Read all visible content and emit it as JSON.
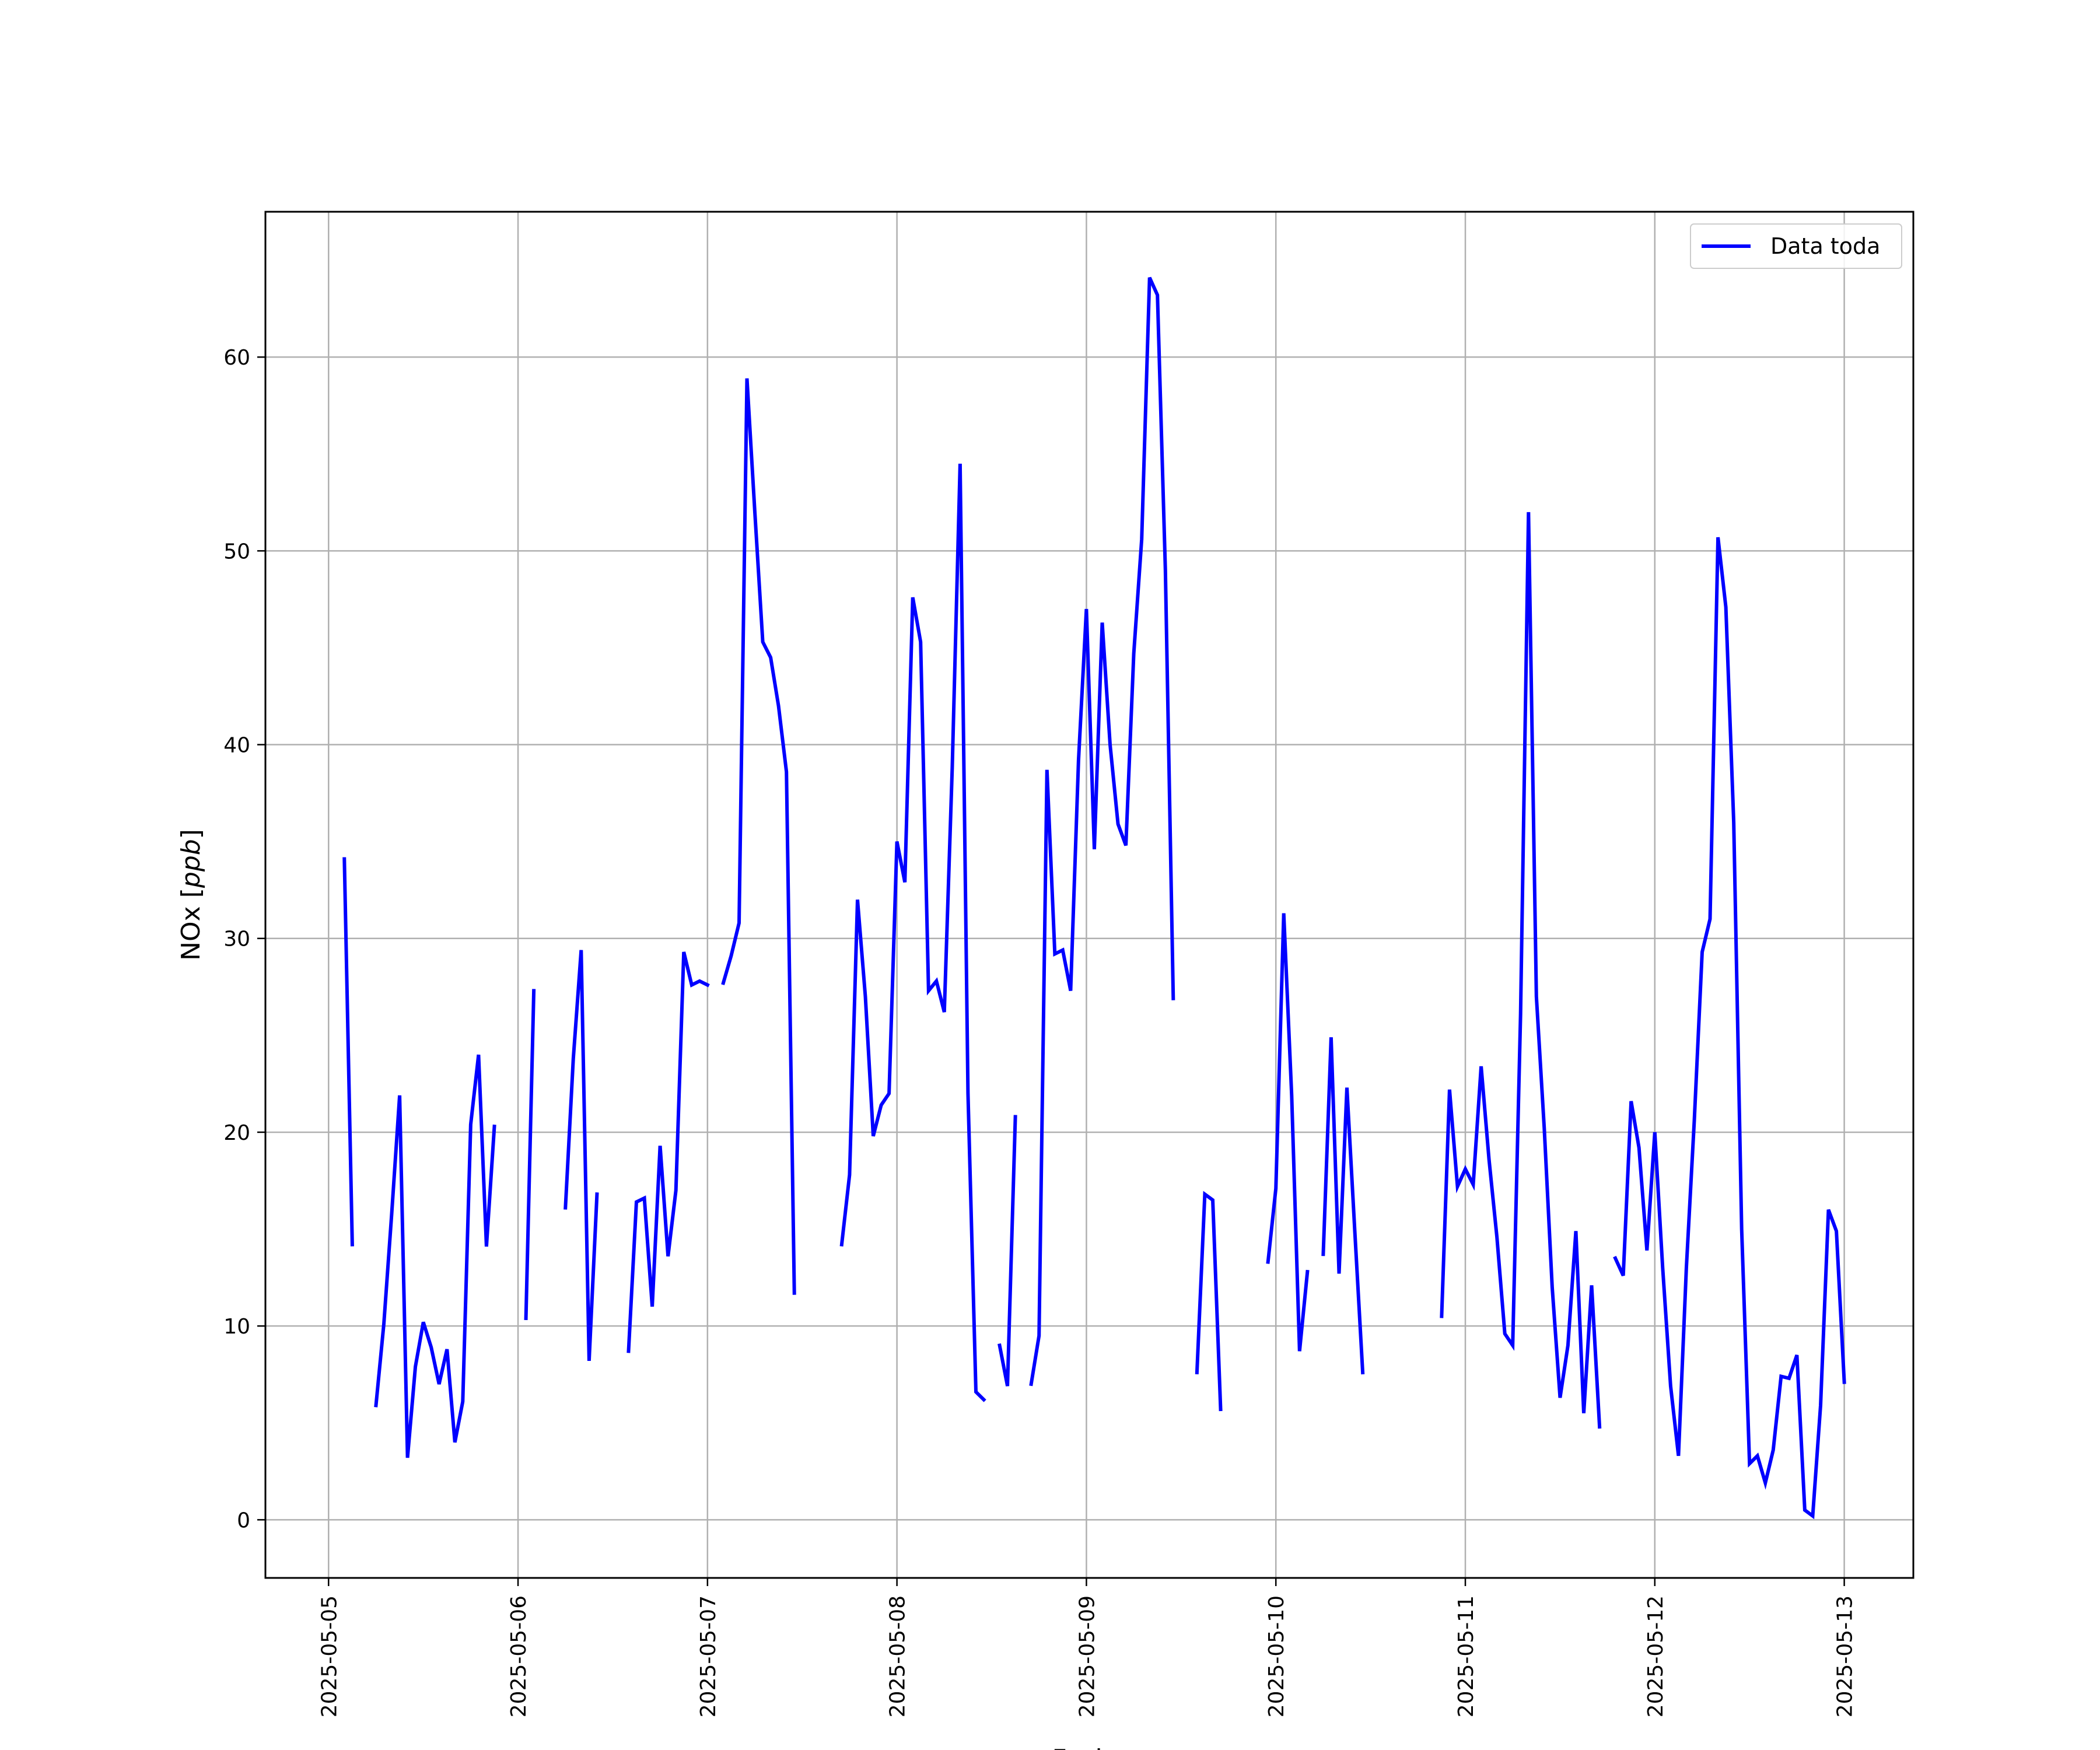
{
  "chart_data": {
    "type": "line",
    "title": "",
    "xlabel": "Fecha",
    "ylabel": "NOx [ppb]",
    "ylabel_parts": {
      "main": "NOx [",
      "italic": "ppb",
      "end": "]"
    },
    "x_ticks": [
      "2025-05-05",
      "2025-05-06",
      "2025-05-07",
      "2025-05-08",
      "2025-05-09",
      "2025-05-10",
      "2025-05-11",
      "2025-05-12",
      "2025-05-13"
    ],
    "y_ticks": [
      "0",
      "10",
      "20",
      "30",
      "40",
      "50",
      "60"
    ],
    "xlim": [
      "2025-05-04T16:00",
      "2025-05-13T08:45"
    ],
    "ylim": [
      -3,
      67.5
    ],
    "grid": true,
    "legend_position": "top-right",
    "series": [
      {
        "name": "Data toda",
        "color": "#0000ff",
        "points": [
          [
            "2025-05-05T02:00",
            34.1
          ],
          [
            "2025-05-05T03:00",
            14.2
          ],
          [
            "2025-05-05T04:00",
            null
          ],
          [
            "2025-05-05T06:00",
            5.9
          ],
          [
            "2025-05-05T07:00",
            10.1
          ],
          [
            "2025-05-05T08:00",
            15.8
          ],
          [
            "2025-05-05T09:00",
            21.9
          ],
          [
            "2025-05-05T10:00",
            3.2
          ],
          [
            "2025-05-05T11:00",
            7.9
          ],
          [
            "2025-05-05T12:00",
            10.2
          ],
          [
            "2025-05-05T13:00",
            8.9
          ],
          [
            "2025-05-05T14:00",
            7.0
          ],
          [
            "2025-05-05T15:00",
            8.8
          ],
          [
            "2025-05-05T16:00",
            4.0
          ],
          [
            "2025-05-05T17:00",
            6.1
          ],
          [
            "2025-05-05T18:00",
            20.4
          ],
          [
            "2025-05-05T19:00",
            24.0
          ],
          [
            "2025-05-05T20:00",
            14.1
          ],
          [
            "2025-05-05T21:00",
            20.3
          ],
          [
            "2025-05-05T22:00",
            null
          ],
          [
            "2025-05-06T01:00",
            10.4
          ],
          [
            "2025-05-06T02:00",
            27.3
          ],
          [
            "2025-05-06T03:00",
            null
          ],
          [
            "2025-05-06T06:00",
            16.1
          ],
          [
            "2025-05-06T07:00",
            23.8
          ],
          [
            "2025-05-06T08:00",
            29.4
          ],
          [
            "2025-05-06T09:00",
            8.2
          ],
          [
            "2025-05-06T10:00",
            16.8
          ],
          [
            "2025-05-06T11:00",
            null
          ],
          [
            "2025-05-06T14:00",
            8.7
          ],
          [
            "2025-05-06T15:00",
            16.4
          ],
          [
            "2025-05-06T16:00",
            16.6
          ],
          [
            "2025-05-06T17:00",
            11.0
          ],
          [
            "2025-05-06T18:00",
            19.3
          ],
          [
            "2025-05-06T19:00",
            13.6
          ],
          [
            "2025-05-06T20:00",
            17.0
          ],
          [
            "2025-05-06T21:00",
            29.3
          ],
          [
            "2025-05-06T22:00",
            27.6
          ],
          [
            "2025-05-06T23:00",
            27.8
          ],
          [
            "2025-05-07T00:00",
            27.6
          ],
          [
            "2025-05-07T01:00",
            null
          ],
          [
            "2025-05-07T02:00",
            27.7
          ],
          [
            "2025-05-07T03:00",
            29.1
          ],
          [
            "2025-05-07T04:00",
            30.8
          ],
          [
            "2025-05-07T05:00",
            58.9
          ],
          [
            "2025-05-07T06:00",
            52.0
          ],
          [
            "2025-05-07T07:00",
            45.3
          ],
          [
            "2025-05-07T08:00",
            44.5
          ],
          [
            "2025-05-07T09:00",
            42.0
          ],
          [
            "2025-05-07T10:00",
            38.6
          ],
          [
            "2025-05-07T11:00",
            11.7
          ],
          [
            "2025-05-07T12:00",
            null
          ],
          [
            "2025-05-07T17:00",
            14.2
          ],
          [
            "2025-05-07T18:00",
            17.8
          ],
          [
            "2025-05-07T19:00",
            32.0
          ],
          [
            "2025-05-07T20:00",
            27.0
          ],
          [
            "2025-05-07T21:00",
            19.8
          ],
          [
            "2025-05-07T22:00",
            21.4
          ],
          [
            "2025-05-07T23:00",
            22.0
          ],
          [
            "2025-05-08T00:00",
            35.0
          ],
          [
            "2025-05-08T01:00",
            32.9
          ],
          [
            "2025-05-08T02:00",
            47.6
          ],
          [
            "2025-05-08T03:00",
            45.3
          ],
          [
            "2025-05-08T04:00",
            27.3
          ],
          [
            "2025-05-08T05:00",
            27.8
          ],
          [
            "2025-05-08T06:00",
            26.2
          ],
          [
            "2025-05-08T07:00",
            38.8
          ],
          [
            "2025-05-08T08:00",
            54.5
          ],
          [
            "2025-05-08T09:00",
            22.0
          ],
          [
            "2025-05-08T10:00",
            6.6
          ],
          [
            "2025-05-08T11:00",
            6.2
          ],
          [
            "2025-05-08T12:00",
            null
          ],
          [
            "2025-05-08T13:00",
            9.0
          ],
          [
            "2025-05-08T14:00",
            6.9
          ],
          [
            "2025-05-08T15:00",
            20.8
          ],
          [
            "2025-05-08T16:00",
            null
          ],
          [
            "2025-05-08T17:00",
            7.0
          ],
          [
            "2025-05-08T18:00",
            9.5
          ],
          [
            "2025-05-08T19:00",
            38.7
          ],
          [
            "2025-05-08T20:00",
            29.2
          ],
          [
            "2025-05-08T21:00",
            29.4
          ],
          [
            "2025-05-08T22:00",
            27.3
          ],
          [
            "2025-05-08T23:00",
            39.2
          ],
          [
            "2025-05-09T00:00",
            47.0
          ],
          [
            "2025-05-09T01:00",
            34.6
          ],
          [
            "2025-05-09T02:00",
            46.3
          ],
          [
            "2025-05-09T03:00",
            40.0
          ],
          [
            "2025-05-09T04:00",
            35.9
          ],
          [
            "2025-05-09T05:00",
            34.8
          ],
          [
            "2025-05-09T06:00",
            44.7
          ],
          [
            "2025-05-09T07:00",
            50.6
          ],
          [
            "2025-05-09T08:00",
            64.1
          ],
          [
            "2025-05-09T09:00",
            63.2
          ],
          [
            "2025-05-09T10:00",
            49.0
          ],
          [
            "2025-05-09T11:00",
            26.9
          ],
          [
            "2025-05-09T12:00",
            null
          ],
          [
            "2025-05-09T14:00",
            7.6
          ],
          [
            "2025-05-09T15:00",
            16.8
          ],
          [
            "2025-05-09T16:00",
            16.5
          ],
          [
            "2025-05-09T17:00",
            5.7
          ],
          [
            "2025-05-09T18:00",
            null
          ],
          [
            "2025-05-09T23:00",
            13.3
          ],
          [
            "2025-05-10T00:00",
            17.1
          ],
          [
            "2025-05-10T01:00",
            31.3
          ],
          [
            "2025-05-10T02:00",
            21.9
          ],
          [
            "2025-05-10T03:00",
            8.7
          ],
          [
            "2025-05-10T04:00",
            12.8
          ],
          [
            "2025-05-10T05:00",
            null
          ],
          [
            "2025-05-10T06:00",
            13.7
          ],
          [
            "2025-05-10T07:00",
            24.9
          ],
          [
            "2025-05-10T08:00",
            12.7
          ],
          [
            "2025-05-10T09:00",
            22.3
          ],
          [
            "2025-05-10T10:00",
            14.9
          ],
          [
            "2025-05-10T11:00",
            7.6
          ],
          [
            "2025-05-10T12:00",
            null
          ],
          [
            "2025-05-10T21:00",
            10.5
          ],
          [
            "2025-05-10T22:00",
            22.2
          ],
          [
            "2025-05-10T23:00",
            17.2
          ],
          [
            "2025-05-11T00:00",
            18.1
          ],
          [
            "2025-05-11T01:00",
            17.3
          ],
          [
            "2025-05-11T02:00",
            23.4
          ],
          [
            "2025-05-11T03:00",
            18.6
          ],
          [
            "2025-05-11T04:00",
            14.6
          ],
          [
            "2025-05-11T05:00",
            9.6
          ],
          [
            "2025-05-11T06:00",
            9.0
          ],
          [
            "2025-05-11T07:00",
            26.1
          ],
          [
            "2025-05-11T08:00",
            52.0
          ],
          [
            "2025-05-11T09:00",
            27.0
          ],
          [
            "2025-05-11T10:00",
            20.2
          ],
          [
            "2025-05-11T11:00",
            12.0
          ],
          [
            "2025-05-11T12:00",
            6.3
          ],
          [
            "2025-05-11T13:00",
            9.0
          ],
          [
            "2025-05-11T14:00",
            14.9
          ],
          [
            "2025-05-11T15:00",
            5.5
          ],
          [
            "2025-05-11T16:00",
            12.1
          ],
          [
            "2025-05-11T17:00",
            4.8
          ],
          [
            "2025-05-11T18:00",
            null
          ],
          [
            "2025-05-11T19:00",
            13.5
          ],
          [
            "2025-05-11T20:00",
            12.6
          ],
          [
            "2025-05-11T21:00",
            21.6
          ],
          [
            "2025-05-11T22:00",
            19.2
          ],
          [
            "2025-05-11T23:00",
            13.9
          ],
          [
            "2025-05-12T00:00",
            20.0
          ],
          [
            "2025-05-12T01:00",
            13.0
          ],
          [
            "2025-05-12T02:00",
            6.9
          ],
          [
            "2025-05-12T03:00",
            3.3
          ],
          [
            "2025-05-12T04:00",
            13.0
          ],
          [
            "2025-05-12T05:00",
            20.6
          ],
          [
            "2025-05-12T06:00",
            29.3
          ],
          [
            "2025-05-12T07:00",
            31.0
          ],
          [
            "2025-05-12T08:00",
            50.7
          ],
          [
            "2025-05-12T09:00",
            47.1
          ],
          [
            "2025-05-12T10:00",
            36.0
          ],
          [
            "2025-05-12T11:00",
            15.0
          ],
          [
            "2025-05-12T12:00",
            2.9
          ],
          [
            "2025-05-12T13:00",
            3.3
          ],
          [
            "2025-05-12T14:00",
            1.9
          ],
          [
            "2025-05-12T15:00",
            3.6
          ],
          [
            "2025-05-12T16:00",
            7.4
          ],
          [
            "2025-05-12T17:00",
            7.3
          ],
          [
            "2025-05-12T18:00",
            8.5
          ],
          [
            "2025-05-12T19:00",
            0.5
          ],
          [
            "2025-05-12T20:00",
            0.2
          ],
          [
            "2025-05-12T21:00",
            5.9
          ],
          [
            "2025-05-12T22:00",
            16.0
          ],
          [
            "2025-05-12T23:00",
            14.9
          ],
          [
            "2025-05-13T00:00",
            7.1
          ]
        ]
      }
    ]
  }
}
